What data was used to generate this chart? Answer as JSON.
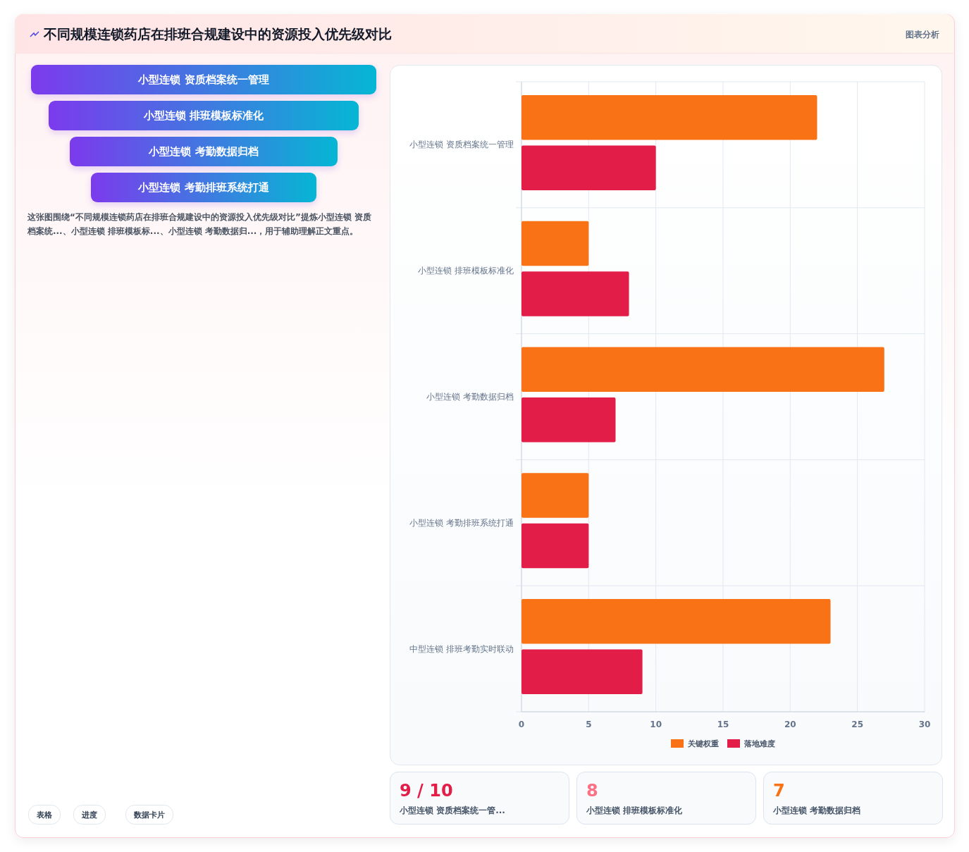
{
  "chart_data": {
    "type": "bar",
    "orientation": "horizontal",
    "title": "不同规模连锁药店在排班合规建设中的资源投入优先级对比",
    "categories": [
      "小型连锁 资质档案统一管理",
      "小型连锁 排班模板标准化",
      "小型连锁 考勤数据归档",
      "小型连锁 考勤排班系统打通",
      "中型连锁 排班考勤实时联动"
    ],
    "series": [
      {
        "name": "关键权重",
        "color": "#f97316",
        "values": [
          22,
          5,
          27,
          5,
          23
        ]
      },
      {
        "name": "落地难度",
        "color": "#e11d48",
        "values": [
          10,
          8,
          7,
          5,
          9
        ]
      }
    ],
    "xlim": [
      0,
      30
    ],
    "xticks": [
      0,
      5,
      10,
      15,
      20,
      25,
      30
    ],
    "grid": true,
    "legend": "bottom",
    "annotations": [
      "图表分析",
      "小型连锁 资质档案统一管理",
      "小型连锁 排班模板标准化",
      "小型连锁 考勤数据归档",
      "小型连锁 考勤排班系统打通",
      "这张图围绕“不同规模连锁药店在排班合规建设中的资源投入优先级对比”提炼小型连锁 资质档案统...、小型连锁 排班模板标...、小型连锁 考勤数据归...，用于辅助理解正文重点。",
      "表格",
      "进度",
      "数据卡片",
      "9 / 10",
      "小型连锁 资质档案统一管...",
      "8",
      "小型连锁 排班模板标准化",
      "7",
      "小型连锁 考勤数据归档"
    ]
  }
}
